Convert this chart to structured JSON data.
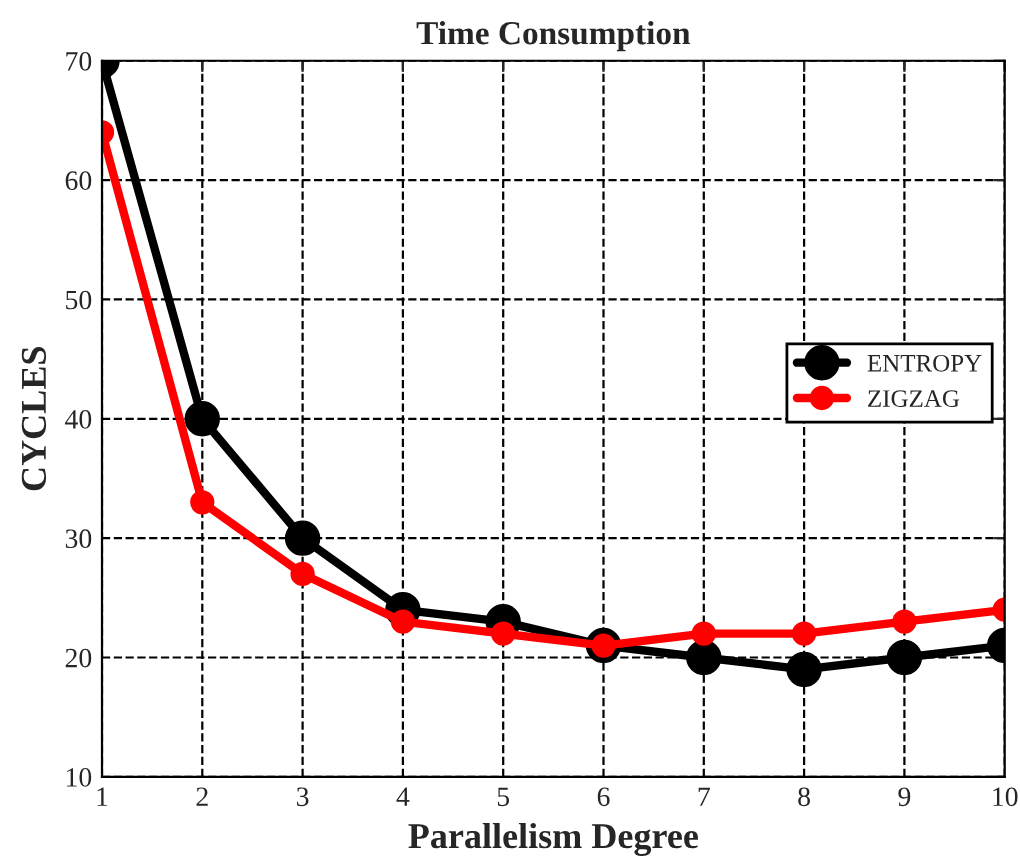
{
  "chart_data": {
    "type": "line",
    "title": "Time Consumption",
    "xlabel": "Parallelism Degree",
    "ylabel": "CYCLES",
    "x": [
      1,
      2,
      3,
      4,
      5,
      6,
      7,
      8,
      9,
      10
    ],
    "series": [
      {
        "name": "ENTROPY",
        "color": "#000000",
        "values": [
          70,
          40,
          30,
          24,
          23,
          21,
          20,
          19,
          20,
          21
        ]
      },
      {
        "name": "ZIGZAG",
        "color": "#ff0000",
        "values": [
          64,
          33,
          27,
          23,
          22,
          21,
          22,
          22,
          23,
          24
        ]
      }
    ],
    "xlim": [
      1,
      10
    ],
    "xticks": [
      1,
      2,
      3,
      4,
      5,
      6,
      7,
      8,
      9,
      10
    ],
    "ylim": [
      10,
      70
    ],
    "yticks": [
      10,
      20,
      30,
      40,
      50,
      60,
      70
    ],
    "grid": true,
    "legend": "right",
    "marker": "circle",
    "line_style": "solid"
  }
}
